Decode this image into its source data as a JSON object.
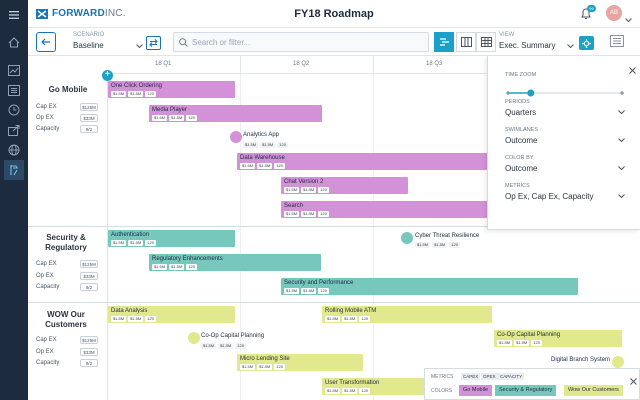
{
  "app": {
    "brand": "FORWARD",
    "brand_suffix": "INC.",
    "title": "FY18 Roadmap",
    "notification_count": "99",
    "user_initials": "AB"
  },
  "colors": {
    "go_mobile": "#d392d8",
    "security": "#76c8bd",
    "wow": "#e1e88d",
    "accent": "#1ca0c8",
    "sidebar": "#1d2b3e"
  },
  "toolbar": {
    "scenario_label": "SCENARIO",
    "scenario_value": "Baseline",
    "search_placeholder": "Search or filter...",
    "view_label": "VIEW",
    "view_value": "Exec. Summary"
  },
  "quarters": [
    "18 Q1",
    "18 Q2",
    "18 Q3"
  ],
  "metric_labels": [
    "Cap EX",
    "Op EX",
    "Capacity"
  ],
  "groups": [
    {
      "title": "Go Mobile",
      "capex": "$125M",
      "opex": "$33M",
      "capacity": "9/2"
    },
    {
      "title": "Security & Regulatory",
      "capex": "$125M",
      "opex": "$33M",
      "capacity": "9/2"
    },
    {
      "title": "WOW Our Customers",
      "capex": "$125M",
      "opex": "$33M",
      "capacity": "9/2"
    }
  ],
  "chip_values": [
    "$1.5M",
    "$1.5M",
    "120"
  ],
  "items": {
    "one_click": "One Click Ordering",
    "media_player": "Media Player",
    "analytics": "Analytics App",
    "data_warehouse": "Data Warehouse",
    "chat": "Chat Version 2",
    "search": "Search",
    "auth": "Authentication",
    "cyber": "Cyber Threat Resilience",
    "reg": "Regulatory Enhancements",
    "secperf": "Security and Performance",
    "data_analysis": "Data Analysis",
    "rolling_atm": "Rolling Mobile ATM",
    "coop1": "Co-Op Capital Planning",
    "coop2": "Co-Op Capital Planning",
    "micro": "Micro Lending Site",
    "digital": "Digital Branch System",
    "user_tx": "User Transformation"
  },
  "panel": {
    "time_zoom": "TIME ZOOM",
    "zoom_level": 0.2,
    "periods_label": "PERIODS",
    "periods_value": "Quarters",
    "swimlanes_label": "SWIMLANES",
    "swimlanes_value": "Outcome",
    "color_label": "COLOR BY",
    "color_value": "Outcome",
    "metrics_label": "METRICS",
    "metrics_value": "Op Ex, Cap Ex, Capacity"
  },
  "legend": {
    "metrics_label": "METRICS",
    "metrics": [
      "CAPEX",
      "OPEX",
      "CAPACITY"
    ],
    "colors_label": "COLORS",
    "colors": [
      "Go Mobile",
      "Security & Regulatory",
      "Wow Our Customers"
    ]
  },
  "icons": [
    "menu-icon",
    "home-icon",
    "chart-icon",
    "list-icon",
    "clock-icon",
    "export-icon",
    "globe-icon",
    "roadmap-icon",
    "bell-icon",
    "search-icon",
    "gear-icon",
    "close-icon",
    "back-arrow-icon",
    "swap-icon"
  ]
}
